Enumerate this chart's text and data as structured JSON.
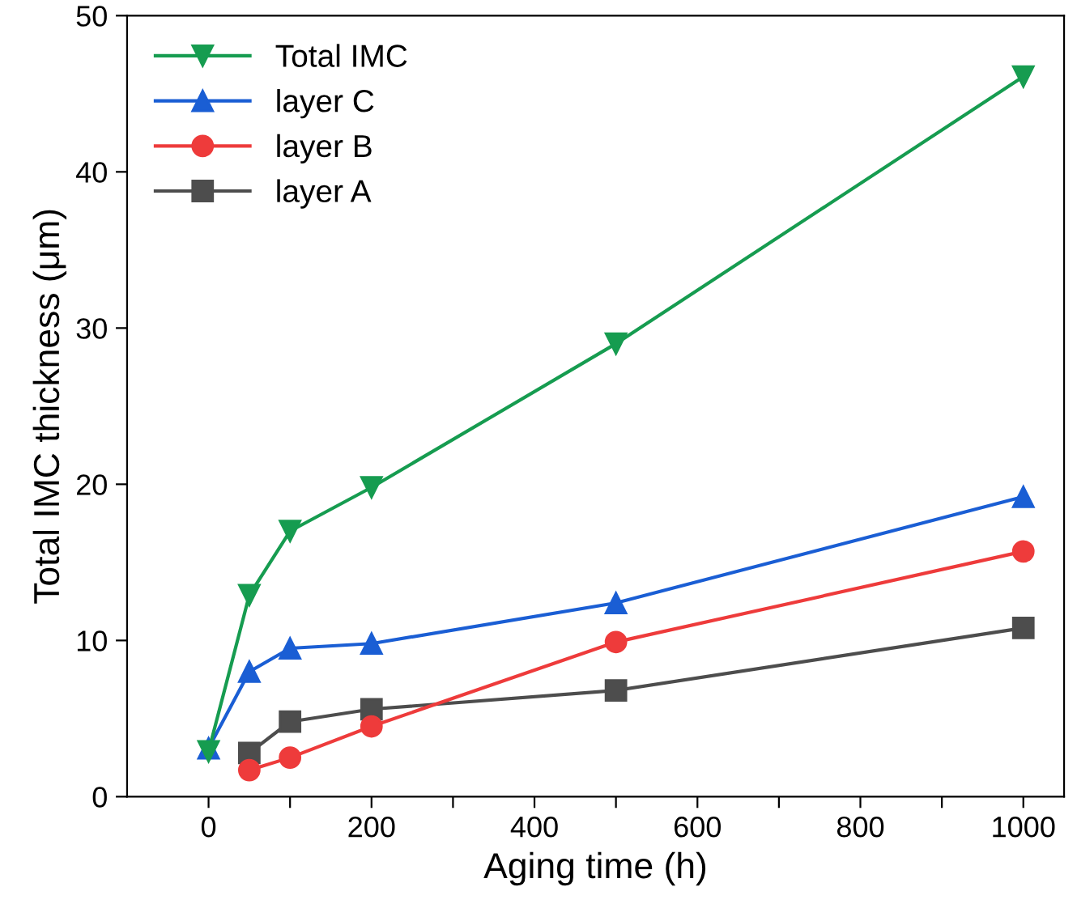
{
  "chart_data": {
    "type": "line",
    "xlabel": "Aging time (h)",
    "ylabel": "Total IMC thickness (μm)",
    "xlim": [
      -100,
      1050
    ],
    "ylim": [
      0,
      50
    ],
    "xticks": [
      0,
      {
        "value": 100,
        "label": null
      },
      200,
      {
        "value": 300,
        "label": null
      },
      400,
      {
        "value": 500,
        "label": null
      },
      600,
      {
        "value": 700,
        "label": null
      },
      800,
      {
        "value": 900,
        "label": null
      },
      1000
    ],
    "yticks": [
      0,
      10,
      20,
      30,
      40,
      50
    ],
    "legend": "top left",
    "grid": false,
    "line_style": "solid",
    "series": [
      {
        "name": "Total IMC",
        "color": "#169c50",
        "marker": "triangle_down",
        "x": [
          0,
          50,
          100,
          200,
          500,
          1000
        ],
        "values": [
          2.9,
          12.9,
          17,
          19.8,
          29,
          46.1
        ]
      },
      {
        "name": "layer C",
        "color": "#1a5ed4",
        "marker": "triangle",
        "x": [
          0,
          50,
          100,
          200,
          500,
          1000
        ],
        "values": [
          3.1,
          8,
          9.5,
          9.8,
          12.4,
          19.2
        ]
      },
      {
        "name": "layer B",
        "color": "#ee3b3b",
        "marker": "circle",
        "x": [
          50,
          100,
          200,
          500,
          1000
        ],
        "values": [
          1.7,
          2.5,
          4.5,
          9.9,
          15.7
        ]
      },
      {
        "name": "layer A",
        "color": "#4d4d4d",
        "marker": "square",
        "x": [
          50,
          100,
          200,
          500,
          1000
        ],
        "values": [
          2.8,
          4.8,
          5.6,
          6.8,
          10.8
        ]
      }
    ]
  }
}
